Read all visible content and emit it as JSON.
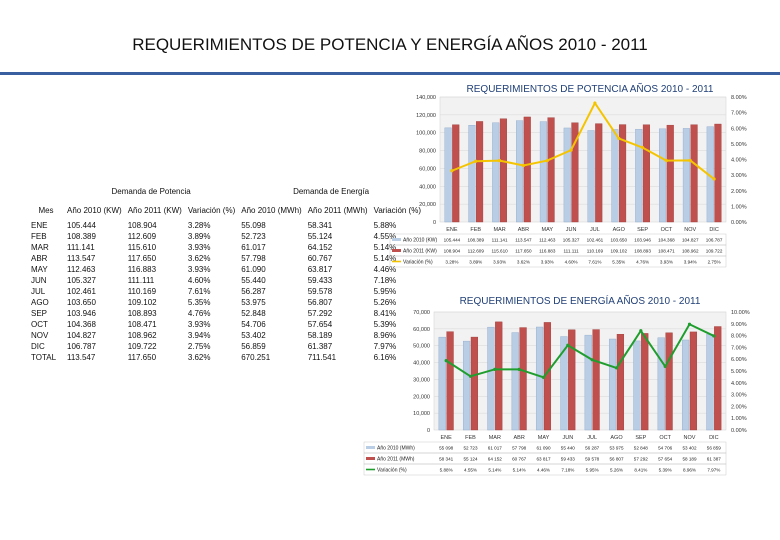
{
  "page_title": "REQUERIMIENTOS DE POTENCIA Y ENERGÍA AÑOS 2010 - 2011",
  "table": {
    "group_power": "Demanda de Potencia",
    "group_energy": "Demanda de Energía",
    "headers": [
      "Mes",
      "Año 2010 (KW)",
      "Año 2011 (KW)",
      "Variación (%)",
      "Año 2010 (MWh)",
      "Año 2011 (MWh)",
      "Variación (%)"
    ],
    "rows": [
      [
        "ENE",
        "105.444",
        "108.904",
        "3.28%",
        "55.098",
        "58.341",
        "5.88%"
      ],
      [
        "FEB",
        "108.389",
        "112.609",
        "3.89%",
        "52.723",
        "55.124",
        "4.55%"
      ],
      [
        "MAR",
        "111.141",
        "115.610",
        "3.93%",
        "61.017",
        "64.152",
        "5.14%"
      ],
      [
        "ABR",
        "113.547",
        "117.650",
        "3.62%",
        "57.798",
        "60.767",
        "5.14%"
      ],
      [
        "MAY",
        "112.463",
        "116.883",
        "3.93%",
        "61.090",
        "63.817",
        "4.46%"
      ],
      [
        "JUN",
        "105.327",
        "111.111",
        "4.60%",
        "55.440",
        "59.433",
        "7.18%"
      ],
      [
        "JUL",
        "102.461",
        "110.169",
        "7.61%",
        "56.287",
        "59.578",
        "5.95%"
      ],
      [
        "AGO",
        "103.650",
        "109.102",
        "5.35%",
        "53.975",
        "56.807",
        "5.26%"
      ],
      [
        "SEP",
        "103.946",
        "108.893",
        "4.76%",
        "52.848",
        "57.292",
        "8.41%"
      ],
      [
        "OCT",
        "104.368",
        "108.471",
        "3.93%",
        "54.706",
        "57.654",
        "5.39%"
      ],
      [
        "NOV",
        "104.827",
        "108.962",
        "3.94%",
        "53.402",
        "58.189",
        "8.96%"
      ],
      [
        "DIC",
        "106.787",
        "109.722",
        "2.75%",
        "56.859",
        "61.387",
        "7.97%"
      ],
      [
        "TOTAL",
        "113.547",
        "117.650",
        "3.62%",
        "670.251",
        "711.541",
        "6.16%"
      ]
    ]
  },
  "chart_data": [
    {
      "type": "bar",
      "title": "REQUERIMIENTOS DE POTENCIA AÑOS 2010 - 2011",
      "categories": [
        "ENE",
        "FEB",
        "MAR",
        "ABR",
        "MAY",
        "JUN",
        "JUL",
        "AGO",
        "SEP",
        "OCT",
        "NOV",
        "DIC"
      ],
      "series": [
        {
          "name": "Año 2010 (KW)",
          "color": "#b9cde5",
          "values": [
            105444,
            108389,
            111141,
            113547,
            112463,
            105327,
            102461,
            103650,
            103946,
            104368,
            104827,
            106787
          ]
        },
        {
          "name": "Año 2011 (KW)",
          "color": "#c0504d",
          "values": [
            108904,
            112609,
            115610,
            117650,
            116883,
            111111,
            110169,
            109102,
            108893,
            108471,
            108962,
            109722
          ]
        },
        {
          "name": "Variación (%)",
          "type": "line",
          "axis": "right",
          "color": "#f5c400",
          "values": [
            3.28,
            3.89,
            3.93,
            3.62,
            3.93,
            4.6,
            7.61,
            5.35,
            4.76,
            3.93,
            3.94,
            2.75
          ]
        }
      ],
      "ylim": [
        0,
        140000
      ],
      "y_ticks": [
        "0",
        "20,000",
        "40,000",
        "60,000",
        "80,000",
        "100,000",
        "120,000",
        "140,000"
      ],
      "y2lim": [
        0,
        8
      ],
      "y2_ticks": [
        "0.00%",
        "1.00%",
        "2.00%",
        "3.00%",
        "4.00%",
        "5.00%",
        "6.00%",
        "7.00%",
        "8.00%"
      ],
      "data_table_values": [
        [
          "105.444",
          "108.389",
          "111.141",
          "113.547",
          "112.463",
          "105.327",
          "102.461",
          "103.650",
          "103.946",
          "104.368",
          "104.827",
          "106.787"
        ],
        [
          "108.904",
          "112.609",
          "115.610",
          "117.650",
          "116.883",
          "111.111",
          "110.169",
          "109.102",
          "108.893",
          "108.471",
          "108.962",
          "109.722"
        ],
        [
          "3.28%",
          "3.89%",
          "3.93%",
          "3.62%",
          "3.93%",
          "4.60%",
          "7.61%",
          "5.35%",
          "4.76%",
          "3.93%",
          "3.94%",
          "2.75%"
        ]
      ]
    },
    {
      "type": "bar",
      "title": "REQUERIMIENTOS DE ENERGÍA AÑOS 2010 - 2011",
      "categories": [
        "ENE",
        "FEB",
        "MAR",
        "ABR",
        "MAY",
        "JUN",
        "JUL",
        "AGO",
        "SEP",
        "OCT",
        "NOV",
        "DIC"
      ],
      "series": [
        {
          "name": "Año 2010 (MWh)",
          "color": "#b9cde5",
          "values": [
            55098,
            52723,
            61017,
            57798,
            61090,
            55440,
            56287,
            53975,
            52848,
            54706,
            53402,
            56859
          ]
        },
        {
          "name": "Año 2011 (MWh)",
          "color": "#c0504d",
          "values": [
            58341,
            55124,
            64152,
            60767,
            63817,
            59433,
            59578,
            56807,
            57292,
            57654,
            58189,
            61387
          ]
        },
        {
          "name": "Variación (%)",
          "type": "line",
          "axis": "right",
          "color": "#1f9e2e",
          "values": [
            5.88,
            4.55,
            5.14,
            5.14,
            4.46,
            7.18,
            5.95,
            5.26,
            8.41,
            5.39,
            8.96,
            7.97
          ]
        }
      ],
      "ylim": [
        0,
        70000
      ],
      "y_ticks": [
        "0",
        "10,000",
        "20,000",
        "30,000",
        "40,000",
        "50,000",
        "60,000",
        "70,000"
      ],
      "y2lim": [
        0,
        10
      ],
      "y2_ticks": [
        "0.00%",
        "1.00%",
        "2.00%",
        "3.00%",
        "4.00%",
        "5.00%",
        "6.00%",
        "7.00%",
        "8.00%",
        "9.00%",
        "10.00%"
      ],
      "data_table_values": [
        [
          "55 098",
          "52 723",
          "61 017",
          "57 798",
          "61 090",
          "55 440",
          "56 287",
          "53 975",
          "52 848",
          "54 706",
          "53 402",
          "56 859"
        ],
        [
          "58 341",
          "55 124",
          "64 152",
          "60 767",
          "63 817",
          "59 433",
          "59 578",
          "56 807",
          "57 292",
          "57 654",
          "58 189",
          "61 387"
        ],
        [
          "5.88%",
          "4.55%",
          "5.14%",
          "5.14%",
          "4.46%",
          "7.18%",
          "5.95%",
          "5.26%",
          "8.41%",
          "5.39%",
          "8.96%",
          "7.97%"
        ]
      ]
    }
  ]
}
